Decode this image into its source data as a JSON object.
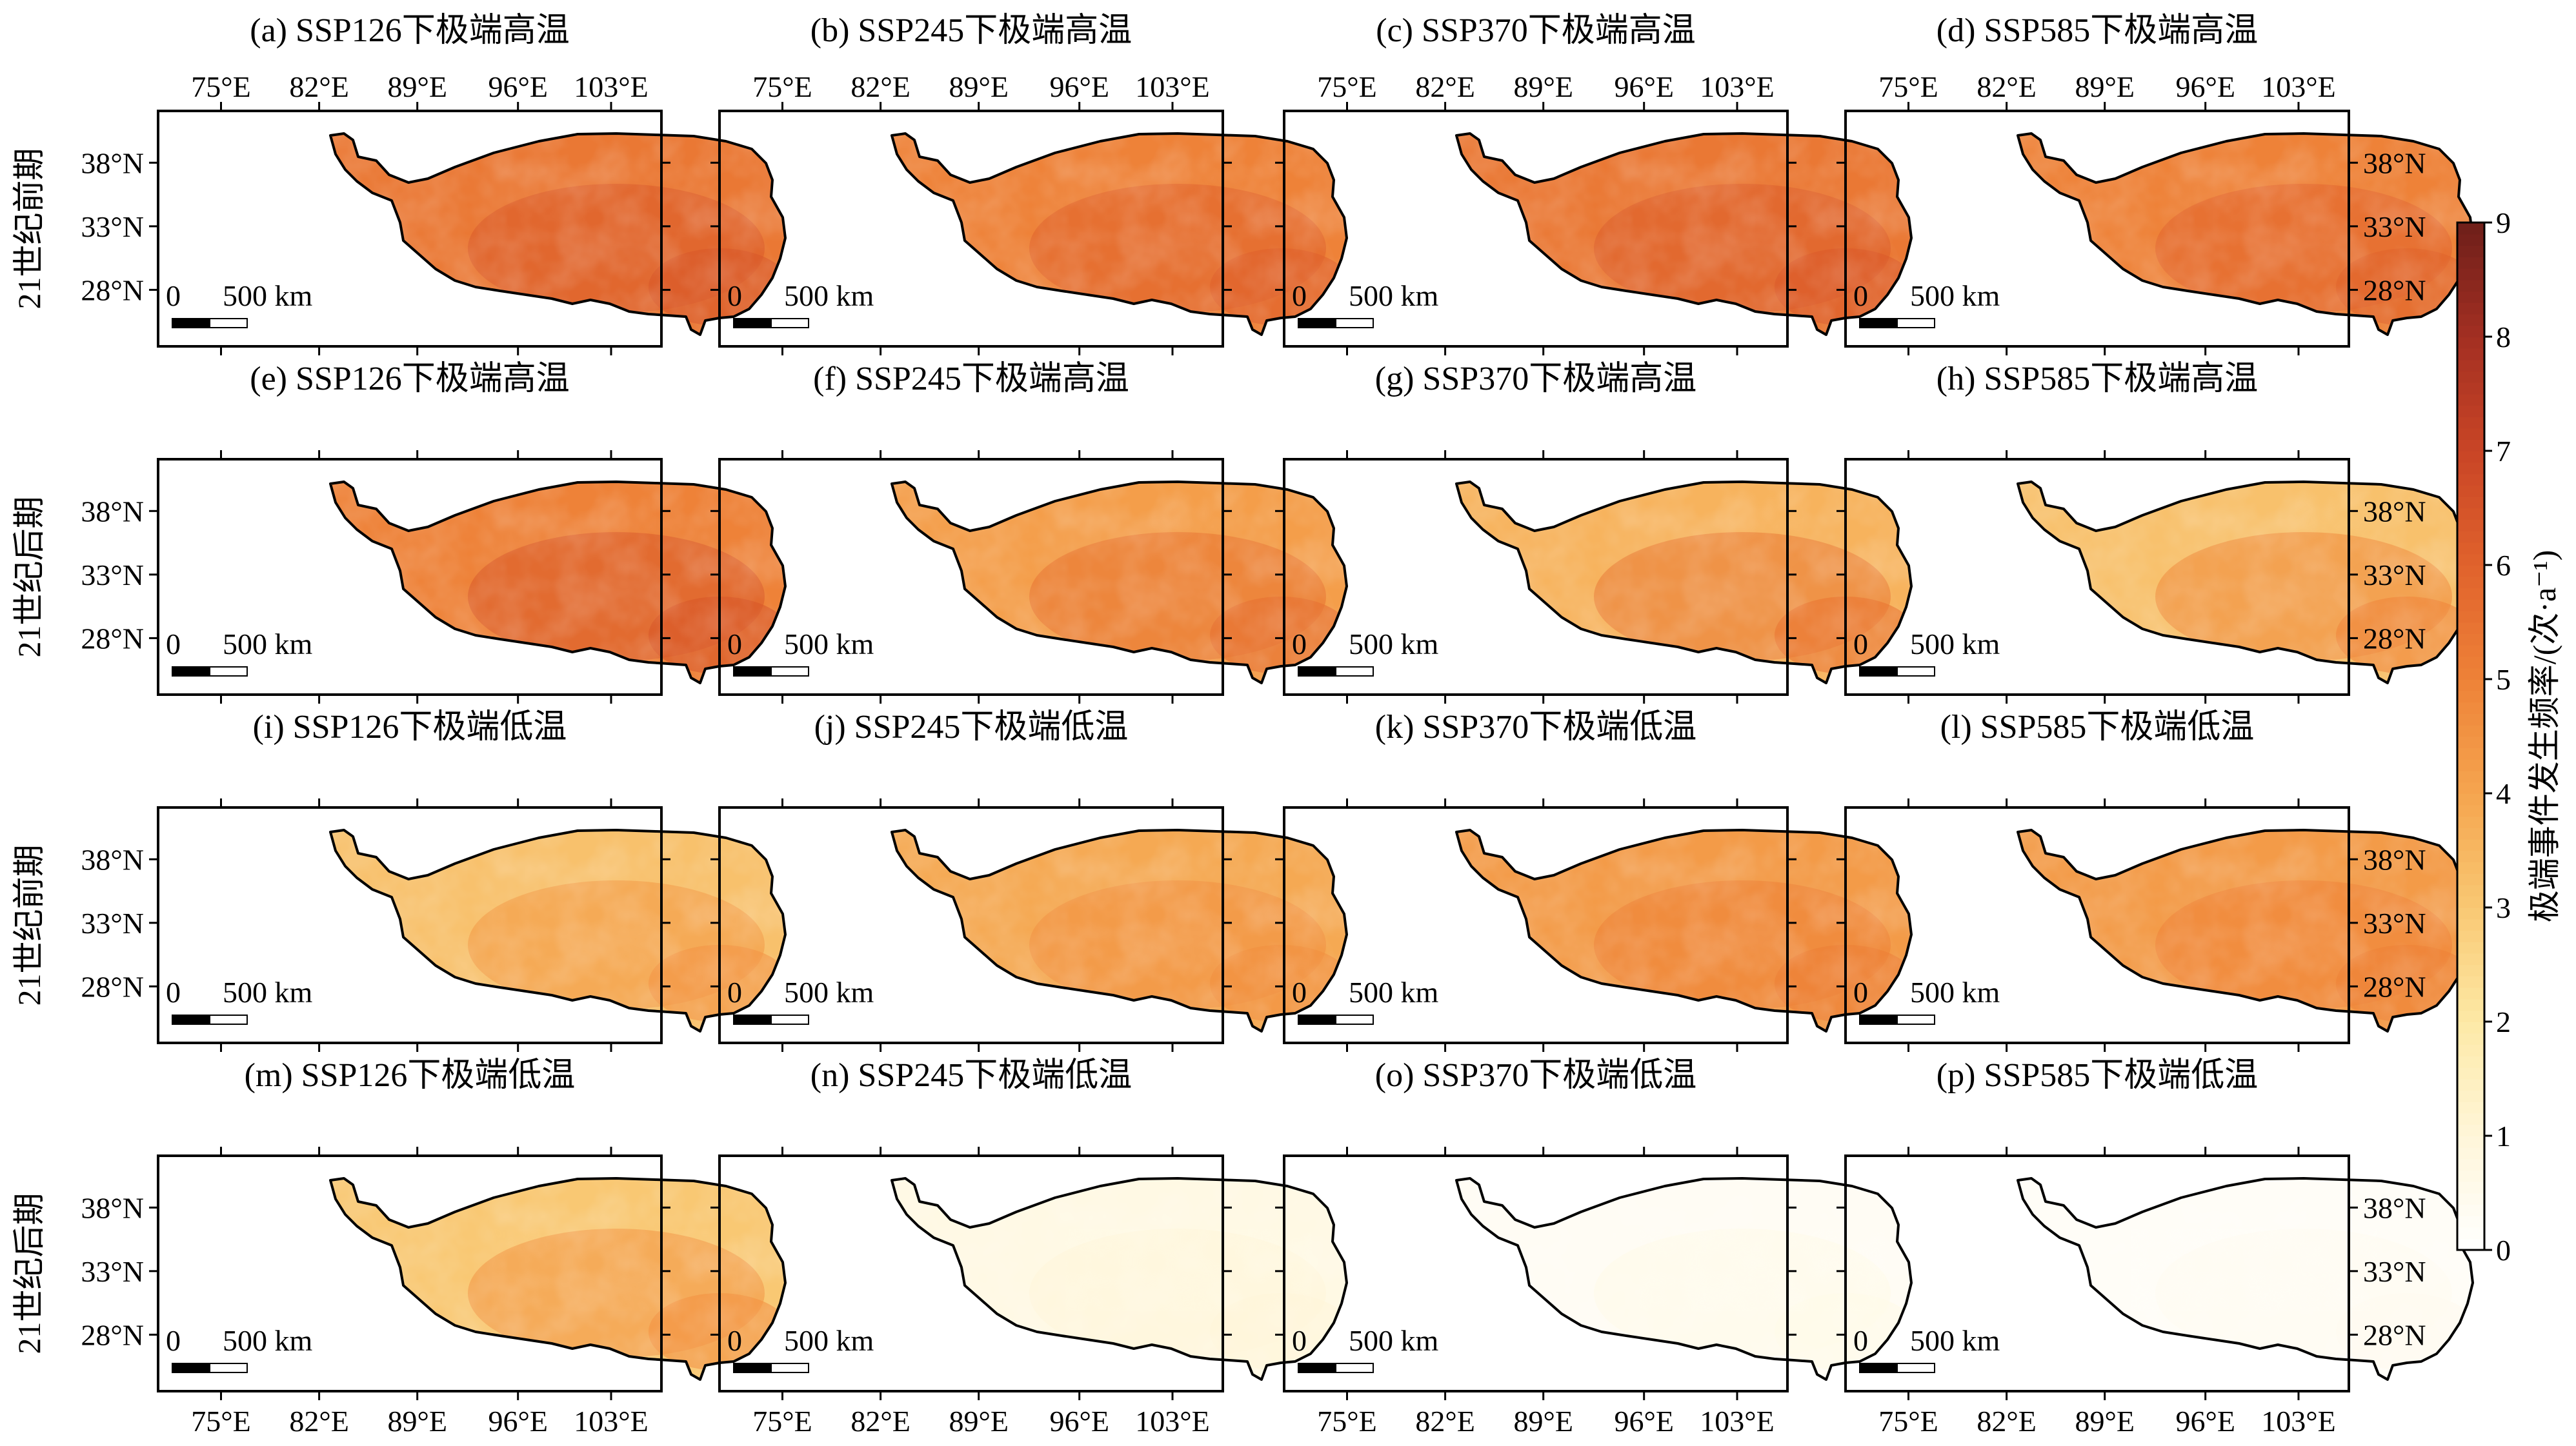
{
  "chart_data": {
    "type": "heatmap",
    "row_labels": [
      "21世纪前期",
      "21世纪后期",
      "21世纪前期",
      "21世纪后期"
    ],
    "x_ticks": [
      "75°E",
      "82°E",
      "89°E",
      "96°E",
      "103°E"
    ],
    "y_ticks": [
      "38°N",
      "33°N",
      "28°N"
    ],
    "scale_bar": {
      "zero": "0",
      "label": "500 km"
    },
    "colorbar": {
      "label": "极端事件发生频率/(次·a⁻¹)",
      "min": 0,
      "max": 9,
      "ticks": [
        "0",
        "1",
        "2",
        "3",
        "4",
        "5",
        "6",
        "7",
        "8",
        "9"
      ],
      "colors": [
        "#ffffff",
        "#fff6d9",
        "#fde9a6",
        "#f9c873",
        "#f5a54f",
        "#ee8238",
        "#e0622c",
        "#c94526",
        "#a32f22",
        "#6e1f1a"
      ]
    },
    "panels": [
      {
        "title": "(a) SSP126下极端高温",
        "mean_value": 5.3,
        "hot_spot": 6.3
      },
      {
        "title": "(b) SSP245下极端高温",
        "mean_value": 5.0,
        "hot_spot": 6.0
      },
      {
        "title": "(c) SSP370下极端高温",
        "mean_value": 5.3,
        "hot_spot": 6.2
      },
      {
        "title": "(d) SSP585下极端高温",
        "mean_value": 5.0,
        "hot_spot": 5.9
      },
      {
        "title": "(e) SSP126下极端高温",
        "mean_value": 5.0,
        "hot_spot": 6.3
      },
      {
        "title": "(f) SSP245下极端高温",
        "mean_value": 4.2,
        "hot_spot": 5.5
      },
      {
        "title": "(g) SSP370下极端高温",
        "mean_value": 3.6,
        "hot_spot": 5.3
      },
      {
        "title": "(h) SSP585下极端高温",
        "mean_value": 3.2,
        "hot_spot": 4.8
      },
      {
        "title": "(i) SSP126下极端低温",
        "mean_value": 3.2,
        "hot_spot": 4.4
      },
      {
        "title": "(j) SSP245下极端低温",
        "mean_value": 3.9,
        "hot_spot": 4.6
      },
      {
        "title": "(k) SSP370下极端低温",
        "mean_value": 4.3,
        "hot_spot": 5.1
      },
      {
        "title": "(l) SSP585下极端低温",
        "mean_value": 4.3,
        "hot_spot": 5.0
      },
      {
        "title": "(m) SSP126下极端低温",
        "mean_value": 3.0,
        "hot_spot": 4.5
      },
      {
        "title": "(n) SSP245下极端低温",
        "mean_value": 0.7,
        "hot_spot": 1.0
      },
      {
        "title": "(o) SSP370下极端低温",
        "mean_value": 0.3,
        "hot_spot": 0.6
      },
      {
        "title": "(p) SSP585下极端低温",
        "mean_value": 0.2,
        "hot_spot": 0.4
      }
    ]
  }
}
